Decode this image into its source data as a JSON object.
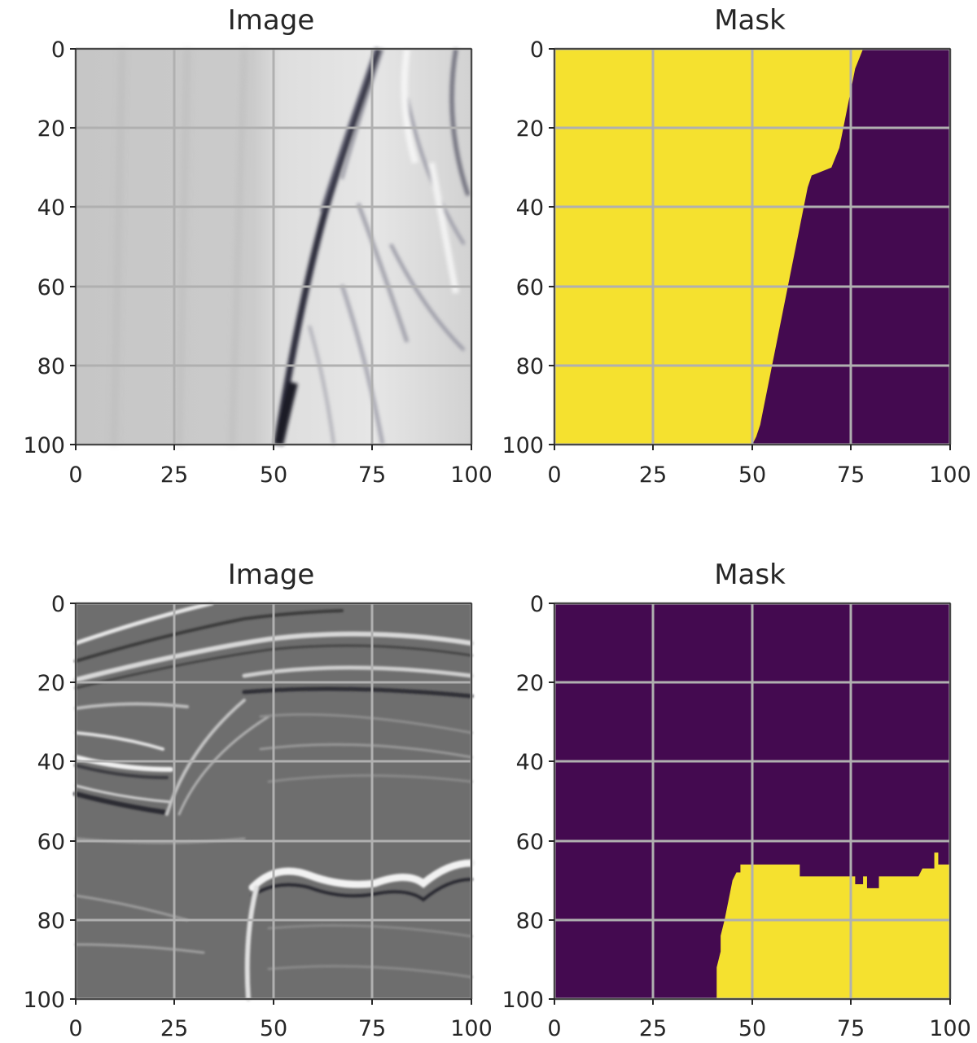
{
  "figure": {
    "panels": [
      {
        "id": "p1",
        "title": "Image",
        "kind": "image",
        "x_ticks": [
          "0",
          "25",
          "50",
          "75",
          "100"
        ],
        "y_ticks": [
          "0",
          "20",
          "40",
          "60",
          "80",
          "100"
        ],
        "variant": "fault"
      },
      {
        "id": "p2",
        "title": "Mask",
        "kind": "mask",
        "x_ticks": [
          "0",
          "25",
          "50",
          "75",
          "100"
        ],
        "y_ticks": [
          "0",
          "20",
          "40",
          "60",
          "80",
          "100"
        ],
        "mask_fill": "#f5e12f",
        "mask_background": "#440a50",
        "mask_side": "left",
        "boundary": [
          [
            78,
            0
          ],
          [
            76,
            5
          ],
          [
            75,
            10
          ],
          [
            74,
            15
          ],
          [
            73,
            20
          ],
          [
            72,
            25
          ],
          [
            70,
            30
          ],
          [
            65,
            32
          ],
          [
            64,
            35
          ],
          [
            63,
            40
          ],
          [
            62,
            45
          ],
          [
            61,
            50
          ],
          [
            60,
            55
          ],
          [
            59,
            60
          ],
          [
            58,
            65
          ],
          [
            57,
            70
          ],
          [
            56,
            75
          ],
          [
            55,
            80
          ],
          [
            54,
            85
          ],
          [
            53,
            90
          ],
          [
            52,
            95
          ],
          [
            51,
            98
          ],
          [
            50,
            100
          ]
        ]
      },
      {
        "id": "p3",
        "title": "Image",
        "kind": "image",
        "x_ticks": [
          "0",
          "25",
          "50",
          "75",
          "100"
        ],
        "y_ticks": [
          "0",
          "20",
          "40",
          "60",
          "80",
          "100"
        ],
        "variant": "layers"
      },
      {
        "id": "p4",
        "title": "Mask",
        "kind": "mask",
        "x_ticks": [
          "0",
          "25",
          "50",
          "75",
          "100"
        ],
        "y_ticks": [
          "0",
          "20",
          "40",
          "60",
          "80",
          "100"
        ],
        "mask_fill": "#f5e12f",
        "mask_background": "#440a50",
        "mask_side": "below",
        "boundary": [
          [
            41,
            100
          ],
          [
            41,
            92
          ],
          [
            42,
            88
          ],
          [
            42,
            84
          ],
          [
            43,
            80
          ],
          [
            44,
            75
          ],
          [
            45,
            70
          ],
          [
            46,
            68
          ],
          [
            47,
            68
          ],
          [
            47,
            66
          ],
          [
            62,
            66
          ],
          [
            62,
            69
          ],
          [
            76,
            69
          ],
          [
            76,
            71
          ],
          [
            78,
            71
          ],
          [
            78,
            69
          ],
          [
            79,
            69
          ],
          [
            79,
            72
          ],
          [
            82,
            72
          ],
          [
            82,
            69
          ],
          [
            92,
            69
          ],
          [
            93,
            67
          ],
          [
            96,
            67
          ],
          [
            96,
            63
          ],
          [
            97,
            63
          ],
          [
            97,
            66
          ],
          [
            100,
            66
          ],
          [
            100,
            100
          ]
        ]
      }
    ]
  }
}
